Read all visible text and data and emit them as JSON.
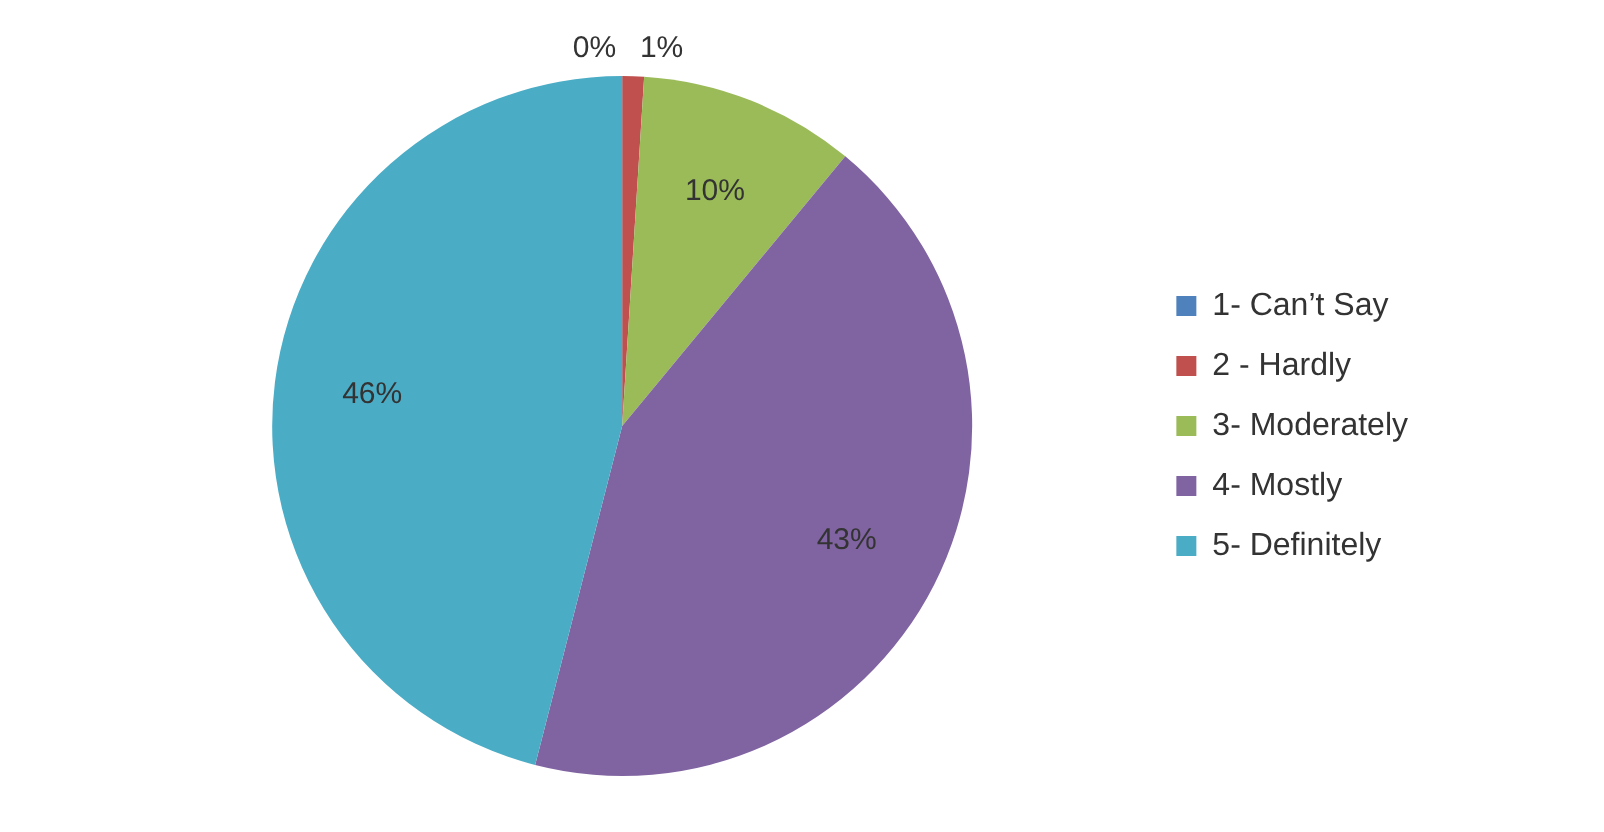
{
  "chart_data": {
    "type": "pie",
    "categories": [
      "1- Can’t Say",
      "2 - Hardly",
      "3- Moderately",
      "4- Mostly",
      "5- Definitely"
    ],
    "values": [
      0,
      1,
      10,
      43,
      46
    ],
    "value_labels": [
      "0%",
      "1%",
      "10%",
      "43%",
      "46%"
    ],
    "colors": [
      "#4f81bd",
      "#c0504d",
      "#9bbb59",
      "#8064a2",
      "#4bacc6"
    ],
    "legend": "right"
  }
}
